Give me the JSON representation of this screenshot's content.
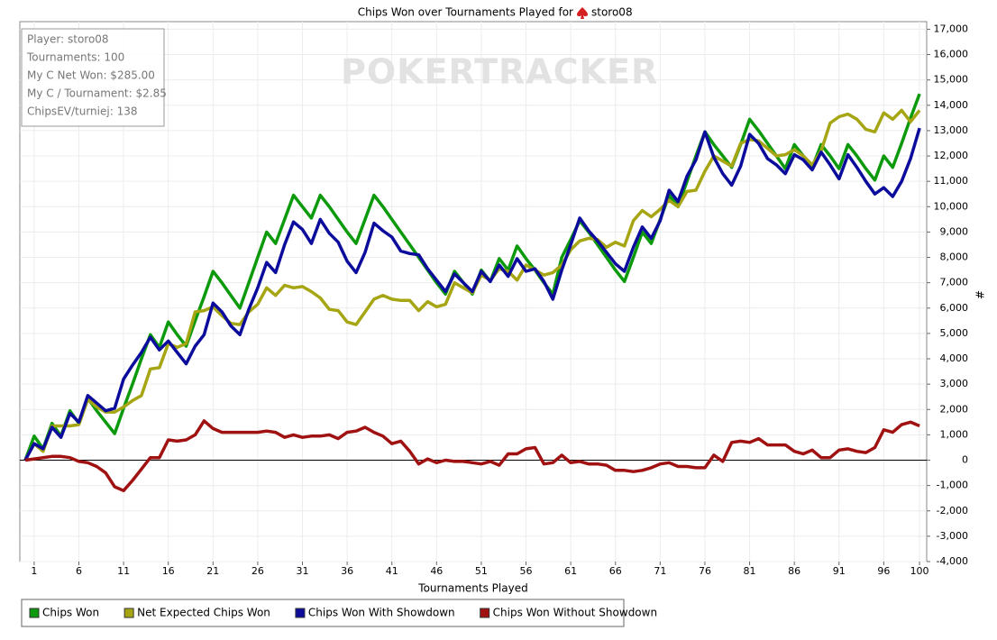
{
  "chart_data": {
    "type": "line",
    "title": "Chips Won over Tournaments Played for",
    "player": "storo08",
    "watermark": "POKERTRACKER",
    "info_box": [
      "Player: storo08",
      "Tournaments: 100",
      "My C Net Won: $285.00",
      "My C / Tournament: $2.85",
      "ChipsEV/turniej: 138"
    ],
    "x_label": "Tournaments Played",
    "y_label": "#",
    "grid": true,
    "legend": "bottom",
    "xlim": [
      -0.6,
      100.8
    ],
    "xticks": [
      1,
      6,
      11,
      16,
      21,
      26,
      31,
      36,
      41,
      46,
      51,
      56,
      61,
      66,
      71,
      76,
      81,
      86,
      91,
      96,
      100
    ],
    "ylim": [
      -4000,
      17300
    ],
    "yticks": [
      {
        "value": 17000,
        "label": "17,000"
      },
      {
        "value": 16000,
        "label": "16,000"
      },
      {
        "value": 15000,
        "label": "15,000"
      },
      {
        "value": 14000,
        "label": "14,000"
      },
      {
        "value": 13000,
        "label": "13,000"
      },
      {
        "value": 12000,
        "label": "12,000"
      },
      {
        "value": 11000,
        "label": "11,000"
      },
      {
        "value": 10000,
        "label": "10,000"
      },
      {
        "value": 9000,
        "label": "9,000"
      },
      {
        "value": 8000,
        "label": "8,000"
      },
      {
        "value": 7000,
        "label": "7,000"
      },
      {
        "value": 6000,
        "label": "6,000"
      },
      {
        "value": 5000,
        "label": "5,000"
      },
      {
        "value": 4000,
        "label": "4,000"
      },
      {
        "value": 3000,
        "label": "3,000"
      },
      {
        "value": 2000,
        "label": "2,000"
      },
      {
        "value": 1000,
        "label": "1,000"
      },
      0,
      {
        "value": -1000,
        "label": "-1,000"
      },
      {
        "value": -2000,
        "label": "-2,000"
      },
      {
        "value": -3000,
        "label": "-3,000"
      },
      {
        "value": -4000,
        "label": "-4,000"
      }
    ],
    "x": [
      0,
      1,
      2,
      3,
      4,
      5,
      6,
      7,
      8,
      9,
      10,
      11,
      12,
      13,
      14,
      15,
      16,
      17,
      18,
      19,
      20,
      21,
      22,
      23,
      24,
      25,
      26,
      27,
      28,
      29,
      30,
      31,
      32,
      33,
      34,
      35,
      36,
      37,
      38,
      39,
      40,
      41,
      42,
      43,
      44,
      45,
      46,
      47,
      48,
      49,
      50,
      51,
      52,
      53,
      54,
      55,
      56,
      57,
      58,
      59,
      60,
      61,
      62,
      63,
      64,
      65,
      66,
      67,
      68,
      69,
      70,
      71,
      72,
      73,
      74,
      75,
      76,
      77,
      78,
      79,
      80,
      81,
      82,
      83,
      84,
      85,
      86,
      87,
      88,
      89,
      90,
      91,
      92,
      93,
      94,
      95,
      96,
      97,
      98,
      99,
      100
    ],
    "series": [
      {
        "name": "Chips Won",
        "color": "#0c9a0c",
        "values": [
          0,
          950,
          450,
          1450,
          950,
          1950,
          1450,
          2450,
          1950,
          1500,
          1050,
          2050,
          3000,
          4000,
          4950,
          4450,
          5450,
          4950,
          4500,
          5500,
          6450,
          7450,
          7000,
          6500,
          6000,
          7000,
          8000,
          9000,
          8550,
          9500,
          10450,
          10000,
          9550,
          10450,
          10000,
          9500,
          9000,
          8550,
          9500,
          10450,
          10000,
          9500,
          9000,
          8500,
          8000,
          7500,
          7000,
          6550,
          7450,
          7000,
          6550,
          7500,
          7050,
          7950,
          7500,
          8450,
          7950,
          7500,
          7000,
          6550,
          8000,
          8700,
          9450,
          9000,
          8500,
          8000,
          7500,
          7050,
          8000,
          9000,
          8550,
          9500,
          10450,
          10000,
          11000,
          12000,
          12950,
          12450,
          12000,
          11550,
          12450,
          13450,
          13000,
          12500,
          12000,
          11500,
          12450,
          12000,
          11550,
          12450,
          12000,
          11500,
          12450,
          12000,
          11500,
          11050,
          12000,
          11550,
          12500,
          13500,
          14450
        ]
      },
      {
        "name": "Net Expected Chips Won",
        "color": "#a6a514",
        "values": [
          0,
          650,
          350,
          1350,
          1350,
          1350,
          1400,
          2400,
          2100,
          1900,
          1900,
          2100,
          2350,
          2550,
          3600,
          3650,
          4600,
          4450,
          4600,
          5850,
          5900,
          6050,
          5700,
          5400,
          5350,
          5850,
          6150,
          6800,
          6500,
          6900,
          6800,
          6850,
          6650,
          6400,
          5950,
          5900,
          5450,
          5350,
          5850,
          6350,
          6500,
          6350,
          6300,
          6300,
          5900,
          6250,
          6050,
          6150,
          7000,
          6800,
          6600,
          7300,
          7100,
          7550,
          7450,
          7100,
          7700,
          7500,
          7300,
          7400,
          7700,
          8300,
          8650,
          8750,
          8700,
          8400,
          8600,
          8450,
          9450,
          9850,
          9600,
          9900,
          10250,
          10000,
          10600,
          10650,
          11400,
          12000,
          11800,
          11600,
          12500,
          12650,
          12600,
          12300,
          12000,
          12050,
          12250,
          12000,
          11650,
          12200,
          13300,
          13550,
          13650,
          13450,
          13050,
          12950,
          13700,
          13450,
          13800,
          13350,
          13800
        ]
      },
      {
        "name": "Chips Won With Showdown",
        "color": "#0c0c9c",
        "values": [
          0,
          650,
          450,
          1300,
          900,
          1850,
          1500,
          2550,
          2250,
          1950,
          2050,
          3200,
          3750,
          4250,
          4850,
          4350,
          4700,
          4250,
          3800,
          4500,
          4950,
          6200,
          5850,
          5300,
          4950,
          5950,
          6800,
          7800,
          7400,
          8500,
          9400,
          9100,
          8550,
          9500,
          8950,
          8600,
          7850,
          7400,
          8200,
          9350,
          9050,
          8800,
          8250,
          8150,
          8100,
          7550,
          7100,
          6650,
          7350,
          7000,
          6650,
          7450,
          7050,
          7700,
          7250,
          7950,
          7450,
          7550,
          7050,
          6350,
          7500,
          8500,
          9550,
          9050,
          8650,
          8200,
          7750,
          7450,
          8400,
          9200,
          8750,
          9450,
          10650,
          10200,
          11200,
          11850,
          12950,
          11950,
          11300,
          10850,
          11600,
          12850,
          12500,
          11900,
          11650,
          11300,
          12050,
          11850,
          11450,
          12150,
          11650,
          11100,
          12050,
          11550,
          11000,
          10500,
          10750,
          10400,
          11000,
          11900,
          13100
        ]
      },
      {
        "name": "Chips Won Without Showdown",
        "color": "#a01212",
        "values": [
          0,
          50,
          100,
          150,
          150,
          100,
          -50,
          -100,
          -250,
          -500,
          -1050,
          -1200,
          -800,
          -350,
          100,
          100,
          800,
          750,
          800,
          1000,
          1550,
          1250,
          1100,
          1100,
          1100,
          1100,
          1100,
          1150,
          1100,
          900,
          1000,
          900,
          950,
          950,
          1000,
          850,
          1100,
          1150,
          1300,
          1100,
          950,
          650,
          750,
          350,
          -150,
          50,
          -100,
          0,
          -50,
          -50,
          -100,
          -150,
          -50,
          -200,
          250,
          250,
          450,
          500,
          -150,
          -100,
          200,
          -100,
          -50,
          -150,
          -150,
          -200,
          -400,
          -400,
          -450,
          -400,
          -300,
          -150,
          -100,
          -250,
          -250,
          -300,
          -300,
          200,
          -50,
          700,
          750,
          700,
          850,
          600,
          600,
          600,
          350,
          250,
          400,
          100,
          100,
          400,
          450,
          350,
          300,
          500,
          1200,
          1100,
          1400,
          1500,
          1350
        ]
      }
    ]
  }
}
